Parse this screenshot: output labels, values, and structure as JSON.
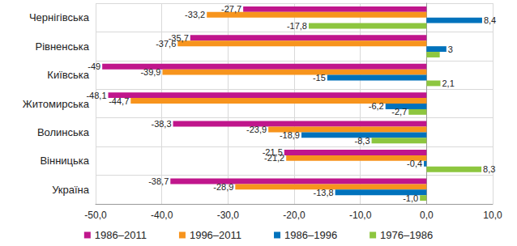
{
  "chart_data": {
    "type": "bar",
    "orientation": "horizontal",
    "categories": [
      "Чернігівська",
      "Рівненська",
      "Київська",
      "Житомирська",
      "Волинська",
      "Вінницька",
      "Україна"
    ],
    "series": [
      {
        "name": "1986–2011",
        "color": "#c0168c",
        "values": [
          -27.7,
          -35.7,
          -49,
          -48.1,
          -38.3,
          -21.5,
          -38.7
        ],
        "value_labels": [
          "-27,7",
          "-35,7",
          "-49",
          "-48,1",
          "-38,3",
          "-21,5",
          "-38,7"
        ]
      },
      {
        "name": "1996–2011",
        "color": "#f7941d",
        "values": [
          -33.2,
          -37.6,
          -39.9,
          -44.7,
          -23.9,
          -21.2,
          -28.9
        ],
        "value_labels": [
          "-33,2",
          "-37,6",
          "-39,9",
          "-44,7",
          "-23,9",
          "-21,2",
          "-28,9"
        ]
      },
      {
        "name": "1986–1996",
        "color": "#0072bc",
        "values": [
          8.4,
          3,
          -15,
          -6.2,
          -18.9,
          -0.4,
          -13.8
        ],
        "value_labels": [
          "8,4",
          "3",
          "-15",
          "-6,2",
          "-18,9",
          "-0,4",
          "-13,8"
        ]
      },
      {
        "name": "1976–1986",
        "color": "#8dc63f",
        "values": [
          -17.8,
          2,
          2.1,
          -2.7,
          -8.3,
          8.3,
          -1.0
        ],
        "value_labels": [
          "-17,8",
          null,
          "2,1",
          "-2,7",
          "-8,3",
          "8,3",
          "-1,0"
        ]
      }
    ],
    "xlim": [
      -50,
      10
    ],
    "xticks": [
      {
        "value": -50,
        "label": "-50,0"
      },
      {
        "value": -40,
        "label": "-40,0"
      },
      {
        "value": -30,
        "label": "-30,0"
      },
      {
        "value": -20,
        "label": "-20,0"
      },
      {
        "value": -10,
        "label": "-10,0"
      },
      {
        "value": 0,
        "label": "0,0"
      },
      {
        "value": 10,
        "label": "10,0"
      }
    ],
    "grid": true,
    "legend": "bottom",
    "data_labels": true
  }
}
